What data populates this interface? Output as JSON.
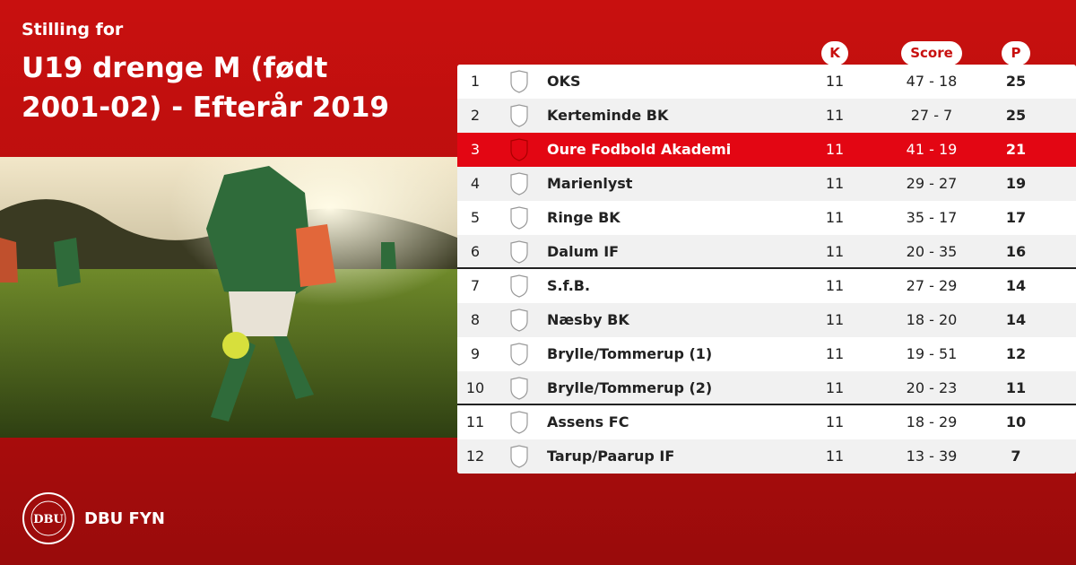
{
  "header": {
    "kicker": "Stilling for",
    "title": "U19 drenge M (født 2001-02) - Efterår 2019"
  },
  "table": {
    "columns": [
      "K",
      "Score",
      "P"
    ],
    "highlight_rank": 3,
    "dividers_after": [
      6,
      10
    ],
    "rows": [
      [
        1,
        "OKS",
        11,
        "47 - 18",
        25
      ],
      [
        2,
        "Kerteminde BK",
        11,
        "27 - 7",
        25
      ],
      [
        3,
        "Oure Fodbold Akademi",
        11,
        "41 - 19",
        21
      ],
      [
        4,
        "Marienlyst",
        11,
        "29 - 27",
        19
      ],
      [
        5,
        "Ringe BK",
        11,
        "35 - 17",
        17
      ],
      [
        6,
        "Dalum IF",
        11,
        "20 - 35",
        16
      ],
      [
        7,
        "S.f.B.",
        11,
        "27 - 29",
        14
      ],
      [
        8,
        "Næsby BK",
        11,
        "18 - 20",
        14
      ],
      [
        9,
        "Brylle/Tommerup (1)",
        11,
        "19 - 51",
        12
      ],
      [
        10,
        "Brylle/Tommerup (2)",
        11,
        "20 - 23",
        11
      ],
      [
        11,
        "Assens FC",
        11,
        "18 - 29",
        10
      ],
      [
        12,
        "Tarup/Paarup IF",
        11,
        "13 - 39",
        7
      ]
    ]
  },
  "footer": {
    "logo_text": "DBU",
    "brand": "DBU FYN"
  }
}
